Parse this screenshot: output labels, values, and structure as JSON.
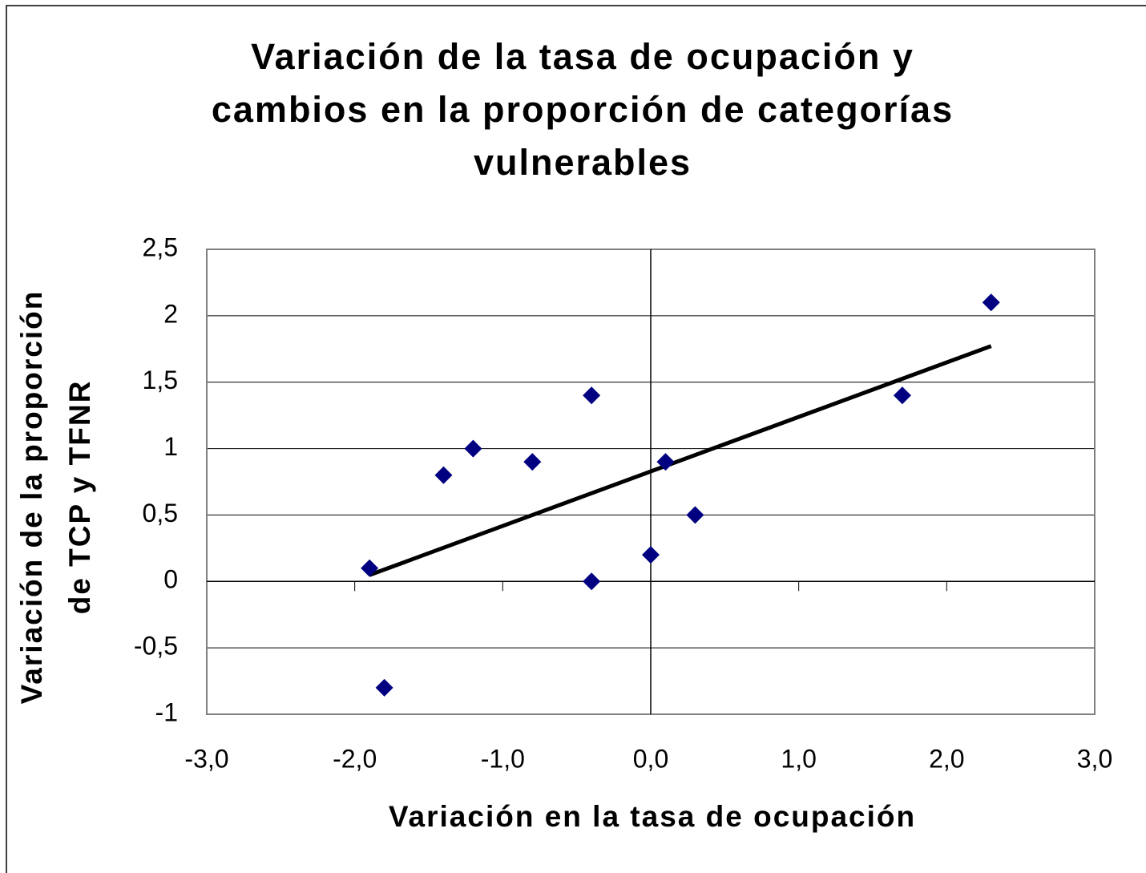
{
  "chart_data": {
    "type": "scatter",
    "title": [
      "Variación de la tasa de ocupación y",
      "cambios en la proporción de categorías",
      "vulnerables"
    ],
    "x_label": "Variación en la tasa de ocupación",
    "y_label": [
      "Variación de la proporción",
      "de TCP y TFNR"
    ],
    "x": [
      -1.9,
      -1.8,
      -1.4,
      -1.2,
      -0.8,
      -0.4,
      -0.4,
      0,
      0.1,
      0.3,
      1.7,
      2.3
    ],
    "values": [
      0.1,
      -0.8,
      0.8,
      1.0,
      0.9,
      1.4,
      0,
      0.2,
      0.9,
      0.5,
      1.4,
      2.1
    ],
    "color": "#000080",
    "trendline": "linear",
    "trendline_color": "#000000",
    "xlim": [
      -3,
      3
    ],
    "xticks": [
      {
        "value": -3,
        "label": "-3,0"
      },
      {
        "value": -2,
        "label": "-2,0"
      },
      {
        "value": -1,
        "label": "-1,0"
      },
      {
        "value": 0,
        "label": "0,0"
      },
      {
        "value": 1,
        "label": "1,0"
      },
      {
        "value": 2,
        "label": "2,0"
      },
      {
        "value": 3,
        "label": "3,0"
      }
    ],
    "ylim": [
      -1,
      2.5
    ],
    "yticks": [
      -1,
      {
        "value": -0.5,
        "label": "-0,5"
      },
      0,
      {
        "value": 0.5,
        "label": "0,5"
      },
      1,
      {
        "value": 1.5,
        "label": "1,5"
      },
      2,
      {
        "value": 2.5,
        "label": "2,5"
      }
    ],
    "grid": true
  }
}
